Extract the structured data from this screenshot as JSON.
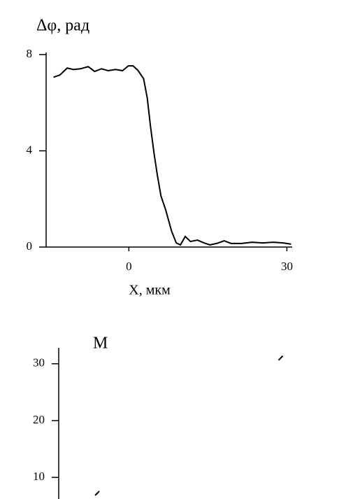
{
  "chart_data": [
    {
      "type": "line",
      "title": "Δφ, рад",
      "x_label": "X, мкм",
      "xlim": [
        -15.7,
        31
      ],
      "xticks": [
        0,
        30
      ],
      "ylim": [
        0,
        8
      ],
      "yticks": [
        0,
        4,
        8
      ],
      "series": [
        {
          "color": "#000000",
          "x": [
            -14.3,
            -13.1,
            -11.7,
            -10.5,
            -9.2,
            -7.7,
            -6.5,
            -5.2,
            -3.9,
            -2.5,
            -1.2,
            -0.1,
            0.8,
            1.7,
            2.8,
            3.5,
            4.1,
            4.8,
            5.4,
            6.1,
            7.0,
            8.1,
            9.0,
            9.8,
            10.7,
            11.7,
            13.0,
            14.3,
            15.4,
            16.7,
            18.1,
            19.4,
            21.4,
            23.4,
            25.4,
            27.4,
            29.3,
            30.8
          ],
          "values": [
            7.06,
            7.15,
            7.44,
            7.38,
            7.41,
            7.5,
            7.3,
            7.41,
            7.33,
            7.38,
            7.33,
            7.53,
            7.53,
            7.35,
            7.0,
            6.19,
            5.03,
            3.87,
            3.0,
            2.12,
            1.54,
            0.67,
            0.17,
            0.09,
            0.44,
            0.23,
            0.29,
            0.17,
            0.09,
            0.15,
            0.26,
            0.15,
            0.15,
            0.2,
            0.17,
            0.2,
            0.17,
            0.12
          ]
        }
      ]
    },
    {
      "type": "scatter",
      "title": "M",
      "ylim": [
        6.2,
        32.8
      ],
      "yticks": [
        10,
        20,
        30
      ],
      "series": [
        {
          "color": "#000000",
          "values": [
            7.2,
            31.0
          ]
        }
      ]
    }
  ]
}
